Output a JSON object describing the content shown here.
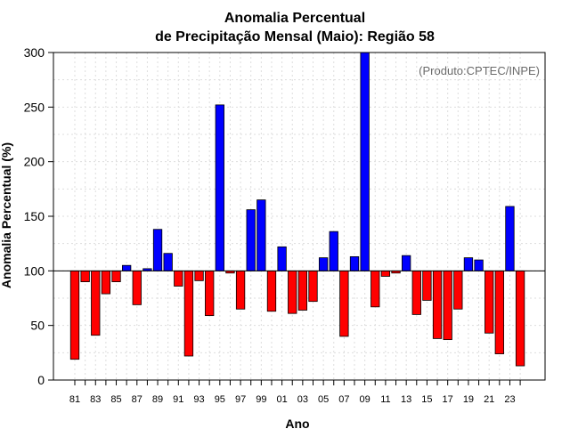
{
  "chart_data": {
    "type": "bar",
    "title_line1": "Anomalia Percentual",
    "title_line2": "de Precipitação Mensal (Maio): Região 58",
    "xlabel": "Ano",
    "ylabel": "Anomalia Percentual (%)",
    "credit": "(Produto:CPTEC/INPE)",
    "ylim": [
      0,
      300
    ],
    "yticks": [
      0,
      50,
      100,
      150,
      200,
      250,
      300
    ],
    "baseline": 100,
    "grid": true,
    "colors": {
      "above": "#0000ff",
      "below": "#ff0000"
    },
    "categories": [
      "81",
      "82",
      "83",
      "84",
      "85",
      "86",
      "87",
      "88",
      "89",
      "90",
      "91",
      "92",
      "93",
      "94",
      "95",
      "96",
      "97",
      "98",
      "99",
      "00",
      "01",
      "02",
      "03",
      "04",
      "05",
      "06",
      "07",
      "08",
      "09",
      "10",
      "11",
      "12",
      "13",
      "14",
      "15",
      "16",
      "17",
      "18",
      "19",
      "20",
      "21",
      "22",
      "23",
      "24"
    ],
    "xtick_labels": [
      "81",
      "83",
      "85",
      "87",
      "89",
      "91",
      "93",
      "95",
      "97",
      "99",
      "01",
      "03",
      "05",
      "07",
      "09",
      "11",
      "13",
      "15",
      "17",
      "19",
      "21",
      "23"
    ],
    "values": [
      19,
      90,
      41,
      79,
      90,
      105,
      69,
      102,
      138,
      116,
      86,
      22,
      91,
      59,
      252,
      98,
      65,
      156,
      165,
      63,
      122,
      61,
      64,
      72,
      112,
      136,
      40,
      113,
      300,
      67,
      95,
      98,
      114,
      60,
      73,
      38,
      37,
      65,
      112,
      110,
      43,
      24,
      159,
      13
    ]
  }
}
